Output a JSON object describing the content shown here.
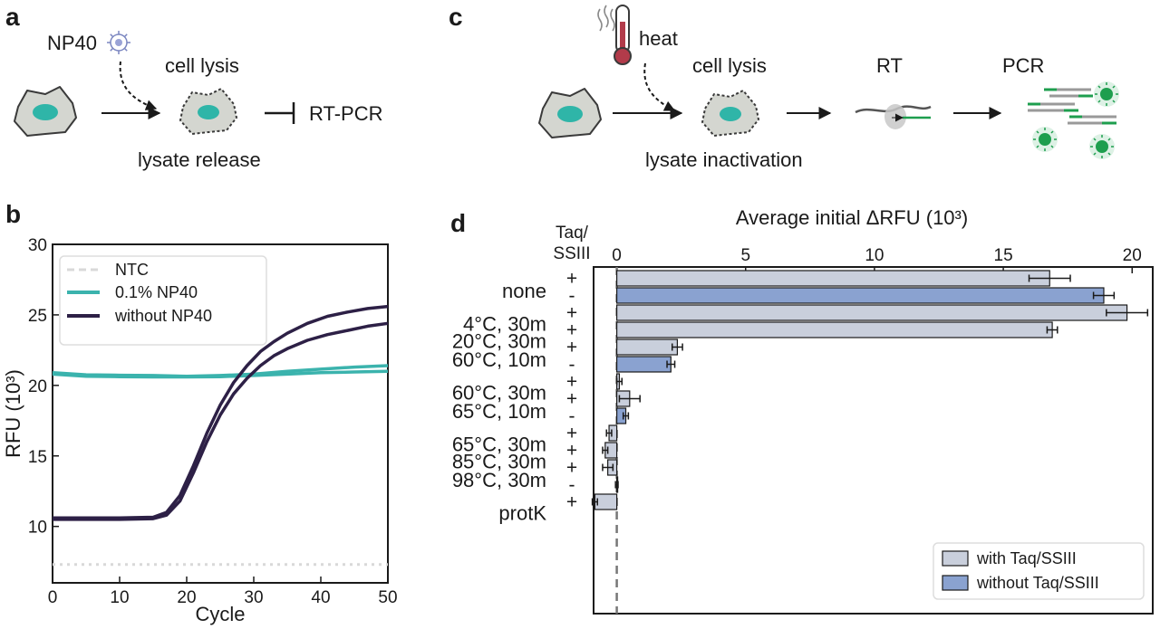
{
  "panels": {
    "a": {
      "letter": "a",
      "reagent": "NP40",
      "step": "cell lysis",
      "outcome": "lysate release",
      "assay": "RT-PCR"
    },
    "b": {
      "letter": "b"
    },
    "c": {
      "letter": "c",
      "reagent": "heat",
      "step1": "cell lysis",
      "step2": "RT",
      "step3": "PCR",
      "outcome": "lysate inactivation"
    },
    "d": {
      "letter": "d",
      "col_header_line1": "Taq/",
      "col_header_line2": "SSIII"
    }
  },
  "colors": {
    "ntc": "#d9d9d9",
    "np40": "#3bb3ad",
    "without_np40": "#2d2046",
    "with_taq": "#c9cfdc",
    "without_taq": "#8aa2d0",
    "cell_fill": "#d4d6d0",
    "nucleus": "#2fb5a8",
    "pcr_green": "#1e9e4e"
  },
  "chart_data": [
    {
      "type": "line",
      "xlabel": "Cycle",
      "ylabel": "RFU (10³)",
      "xlim": [
        0,
        50
      ],
      "ylim": [
        6,
        30
      ],
      "xticks": [
        "0",
        "10",
        "20",
        "30",
        "40",
        "50"
      ],
      "yticks": [
        "10",
        "15",
        "20",
        "25",
        "30"
      ],
      "grid": false,
      "legend_position": "top-left",
      "series": [
        {
          "name": "NTC",
          "style": "dashed",
          "x": [
            0,
            10,
            20,
            30,
            40,
            50
          ],
          "y": [
            7.3,
            7.3,
            7.3,
            7.3,
            7.3,
            7.3
          ]
        },
        {
          "name": "0.1% NP40",
          "x": [
            0,
            5,
            10,
            15,
            20,
            25,
            30,
            35,
            40,
            45,
            50
          ],
          "y": [
            20.9,
            20.75,
            20.72,
            20.7,
            20.65,
            20.7,
            20.8,
            21.0,
            21.15,
            21.3,
            21.4
          ]
        },
        {
          "name": "",
          "x": [
            0,
            5,
            10,
            15,
            20,
            25,
            30,
            35,
            40,
            45,
            50
          ],
          "y": [
            20.8,
            20.65,
            20.62,
            20.6,
            20.6,
            20.62,
            20.7,
            20.8,
            20.9,
            20.95,
            21.0
          ]
        },
        {
          "name": "without NP40",
          "x": [
            0,
            5,
            10,
            15,
            17,
            19,
            21,
            23,
            25,
            27,
            29,
            31,
            33,
            35,
            38,
            41,
            44,
            47,
            50
          ],
          "y": [
            10.6,
            10.6,
            10.6,
            10.65,
            11.0,
            12.2,
            14.3,
            16.6,
            18.6,
            20.2,
            21.4,
            22.4,
            23.1,
            23.7,
            24.4,
            24.9,
            25.2,
            25.45,
            25.6
          ]
        },
        {
          "name": "",
          "x": [
            0,
            5,
            10,
            15,
            17,
            19,
            21,
            23,
            25,
            27,
            29,
            31,
            33,
            35,
            38,
            41,
            44,
            47,
            50
          ],
          "y": [
            10.5,
            10.5,
            10.5,
            10.55,
            10.8,
            11.8,
            13.8,
            16.0,
            17.9,
            19.4,
            20.5,
            21.4,
            22.1,
            22.6,
            23.2,
            23.6,
            23.9,
            24.2,
            24.4
          ]
        }
      ]
    },
    {
      "type": "bar",
      "orientation": "horizontal",
      "title": "Average initial ΔRFU (10³)",
      "xlim": [
        -0.9,
        20.8
      ],
      "xticks": [
        "0",
        "5",
        "10",
        "15",
        "20"
      ],
      "legend_position": "bottom-right",
      "series_names": [
        "with Taq/SSIII",
        "without Taq/SSIII"
      ],
      "categories": [
        "none",
        "4°C, 30m",
        "20°C, 30m",
        "60°C, 10m",
        "60°C, 30m",
        "65°C, 10m",
        "65°C, 30m",
        "85°C, 30m",
        "98°C, 30m",
        "protK"
      ],
      "bars": [
        {
          "category": "none",
          "sign": "+",
          "series": "with Taq/SSIII",
          "value": 16.8,
          "error": 0.8
        },
        {
          "category": "none",
          "sign": "-",
          "series": "without Taq/SSIII",
          "value": 18.9,
          "error": 0.4
        },
        {
          "category": "4°C, 30m",
          "sign": "+",
          "series": "with Taq/SSIII",
          "value": 19.8,
          "error": 0.8
        },
        {
          "category": "20°C, 30m",
          "sign": "+",
          "series": "with Taq/SSIII",
          "value": 16.9,
          "error": 0.2
        },
        {
          "category": "60°C, 10m",
          "sign": "+",
          "series": "with Taq/SSIII",
          "value": 2.35,
          "error": 0.2
        },
        {
          "category": "60°C, 10m",
          "sign": "-",
          "series": "without Taq/SSIII",
          "value": 2.1,
          "error": 0.15
        },
        {
          "category": "60°C, 30m",
          "sign": "+",
          "series": "with Taq/SSIII",
          "value": 0.1,
          "error": 0.1
        },
        {
          "category": "65°C, 10m",
          "sign": "+",
          "series": "with Taq/SSIII",
          "value": 0.5,
          "error": 0.4
        },
        {
          "category": "65°C, 10m",
          "sign": "-",
          "series": "without Taq/SSIII",
          "value": 0.35,
          "error": 0.1
        },
        {
          "category": "65°C, 30m",
          "sign": "+",
          "series": "with Taq/SSIII",
          "value": -0.3,
          "error": 0.1
        },
        {
          "category": "85°C, 30m",
          "sign": "+",
          "series": "with Taq/SSIII",
          "value": -0.45,
          "error": 0.1
        },
        {
          "category": "98°C, 30m",
          "sign": "+",
          "series": "with Taq/SSIII",
          "value": -0.35,
          "error": 0.2
        },
        {
          "category": "98°C, 30m",
          "sign": "-",
          "series": "without Taq/SSIII",
          "value": 0.0,
          "error": 0.05
        },
        {
          "category": "protK",
          "sign": "+",
          "series": "with Taq/SSIII",
          "value": -0.85,
          "error": 0.1
        }
      ]
    }
  ]
}
